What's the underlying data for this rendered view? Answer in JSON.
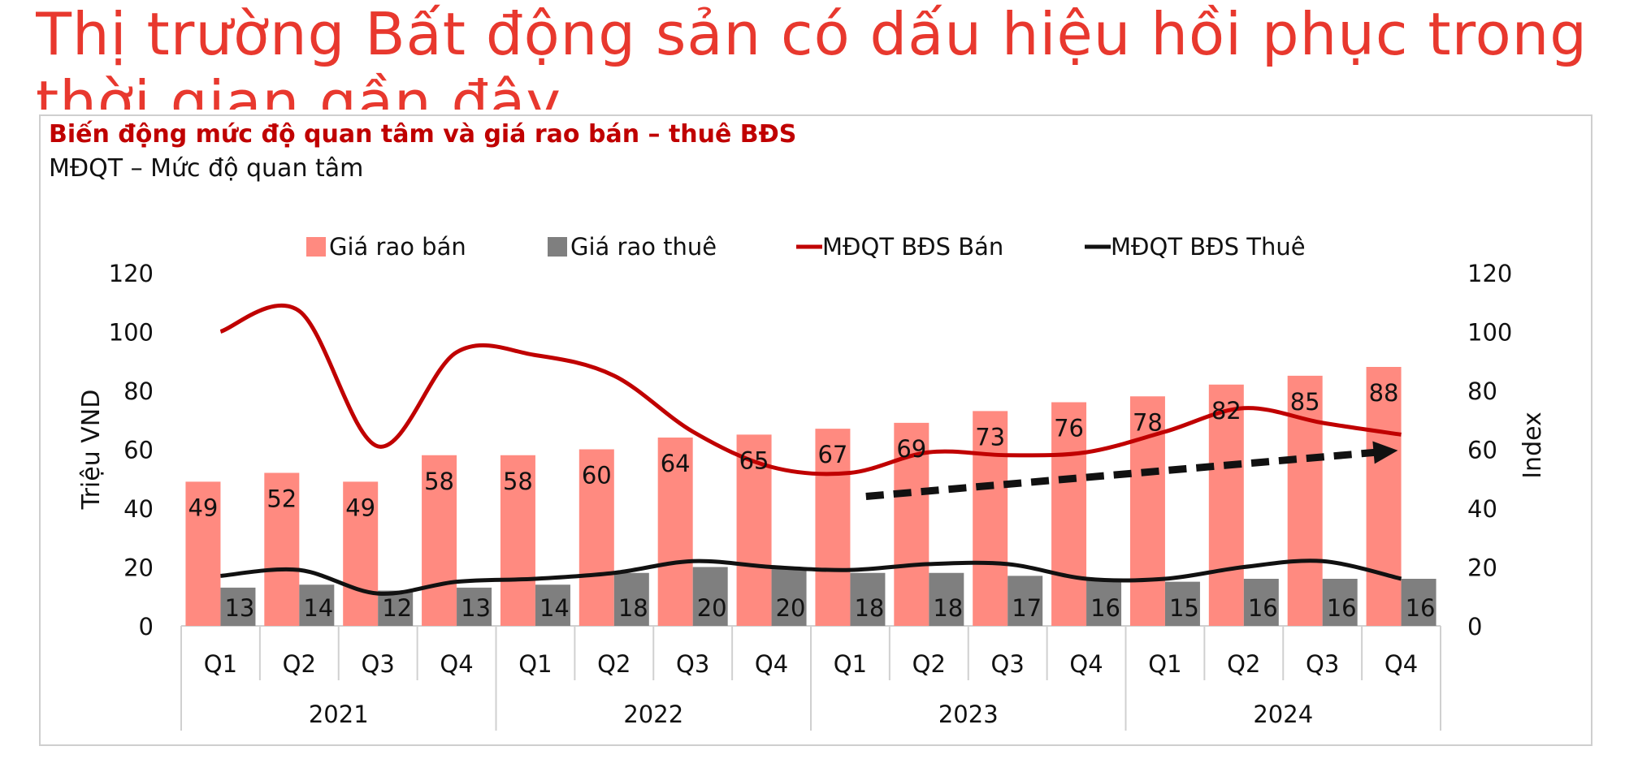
{
  "page": {
    "title": "Thị trường Bất động sản có dấu hiệu hồi phục trong thời gian gần đây"
  },
  "colors": {
    "title": "#e8382e",
    "chart_title": "#c00000",
    "bar_sale": "#ff8a80",
    "bar_rent": "#7f7f7f",
    "line_sale": "#c00000",
    "line_rent": "#111111",
    "trend_arrow": "#111111"
  },
  "chart_data": {
    "type": "bar",
    "title": "Biến động mức độ quan tâm và giá rao bán – thuê BĐS",
    "subtitle": "MĐQT – Mức độ quan tâm",
    "ylabel": "Triệu VND",
    "y2label": "Index",
    "ylim": [
      0,
      120
    ],
    "y2lim": [
      0,
      120
    ],
    "yticks": [
      0,
      20,
      40,
      60,
      80,
      100,
      120
    ],
    "y2ticks": [
      0,
      20,
      40,
      60,
      80,
      100,
      120
    ],
    "categories": [
      "Q1",
      "Q2",
      "Q3",
      "Q4",
      "Q1",
      "Q2",
      "Q3",
      "Q4",
      "Q1",
      "Q2",
      "Q3",
      "Q4",
      "Q1",
      "Q2",
      "Q3",
      "Q4"
    ],
    "groups": [
      {
        "label": "2021",
        "span": 4
      },
      {
        "label": "2022",
        "span": 4
      },
      {
        "label": "2023",
        "span": 4
      },
      {
        "label": "2024",
        "span": 4
      }
    ],
    "legend_position": "top",
    "grid": false,
    "series": [
      {
        "name": "Giá rao bán",
        "kind": "bar",
        "axis": "left",
        "values": [
          49,
          52,
          49,
          58,
          58,
          60,
          64,
          65,
          67,
          69,
          73,
          76,
          78,
          82,
          85,
          88
        ]
      },
      {
        "name": "Giá rao thuê",
        "kind": "bar",
        "axis": "left",
        "values": [
          13,
          14,
          12,
          13,
          14,
          18,
          20,
          20,
          18,
          18,
          17,
          16,
          15,
          16,
          16,
          16
        ]
      },
      {
        "name": "MĐQT BĐS Bán",
        "kind": "line",
        "axis": "right",
        "values": [
          100,
          107,
          61,
          93,
          92,
          85,
          66,
          54,
          52,
          59,
          58,
          59,
          66,
          74,
          69,
          65
        ]
      },
      {
        "name": "MĐQT BĐS Thuê",
        "kind": "line",
        "axis": "right",
        "values": [
          17,
          19,
          11,
          15,
          16,
          18,
          22,
          20,
          19,
          21,
          21,
          16,
          16,
          20,
          22,
          16
        ]
      }
    ],
    "annotations": [
      {
        "type": "dashed-arrow",
        "description": "upward trend",
        "from": {
          "x_index": 8.2,
          "y": 44
        },
        "to": {
          "x_index": 15.0,
          "y": 59
        }
      }
    ]
  }
}
